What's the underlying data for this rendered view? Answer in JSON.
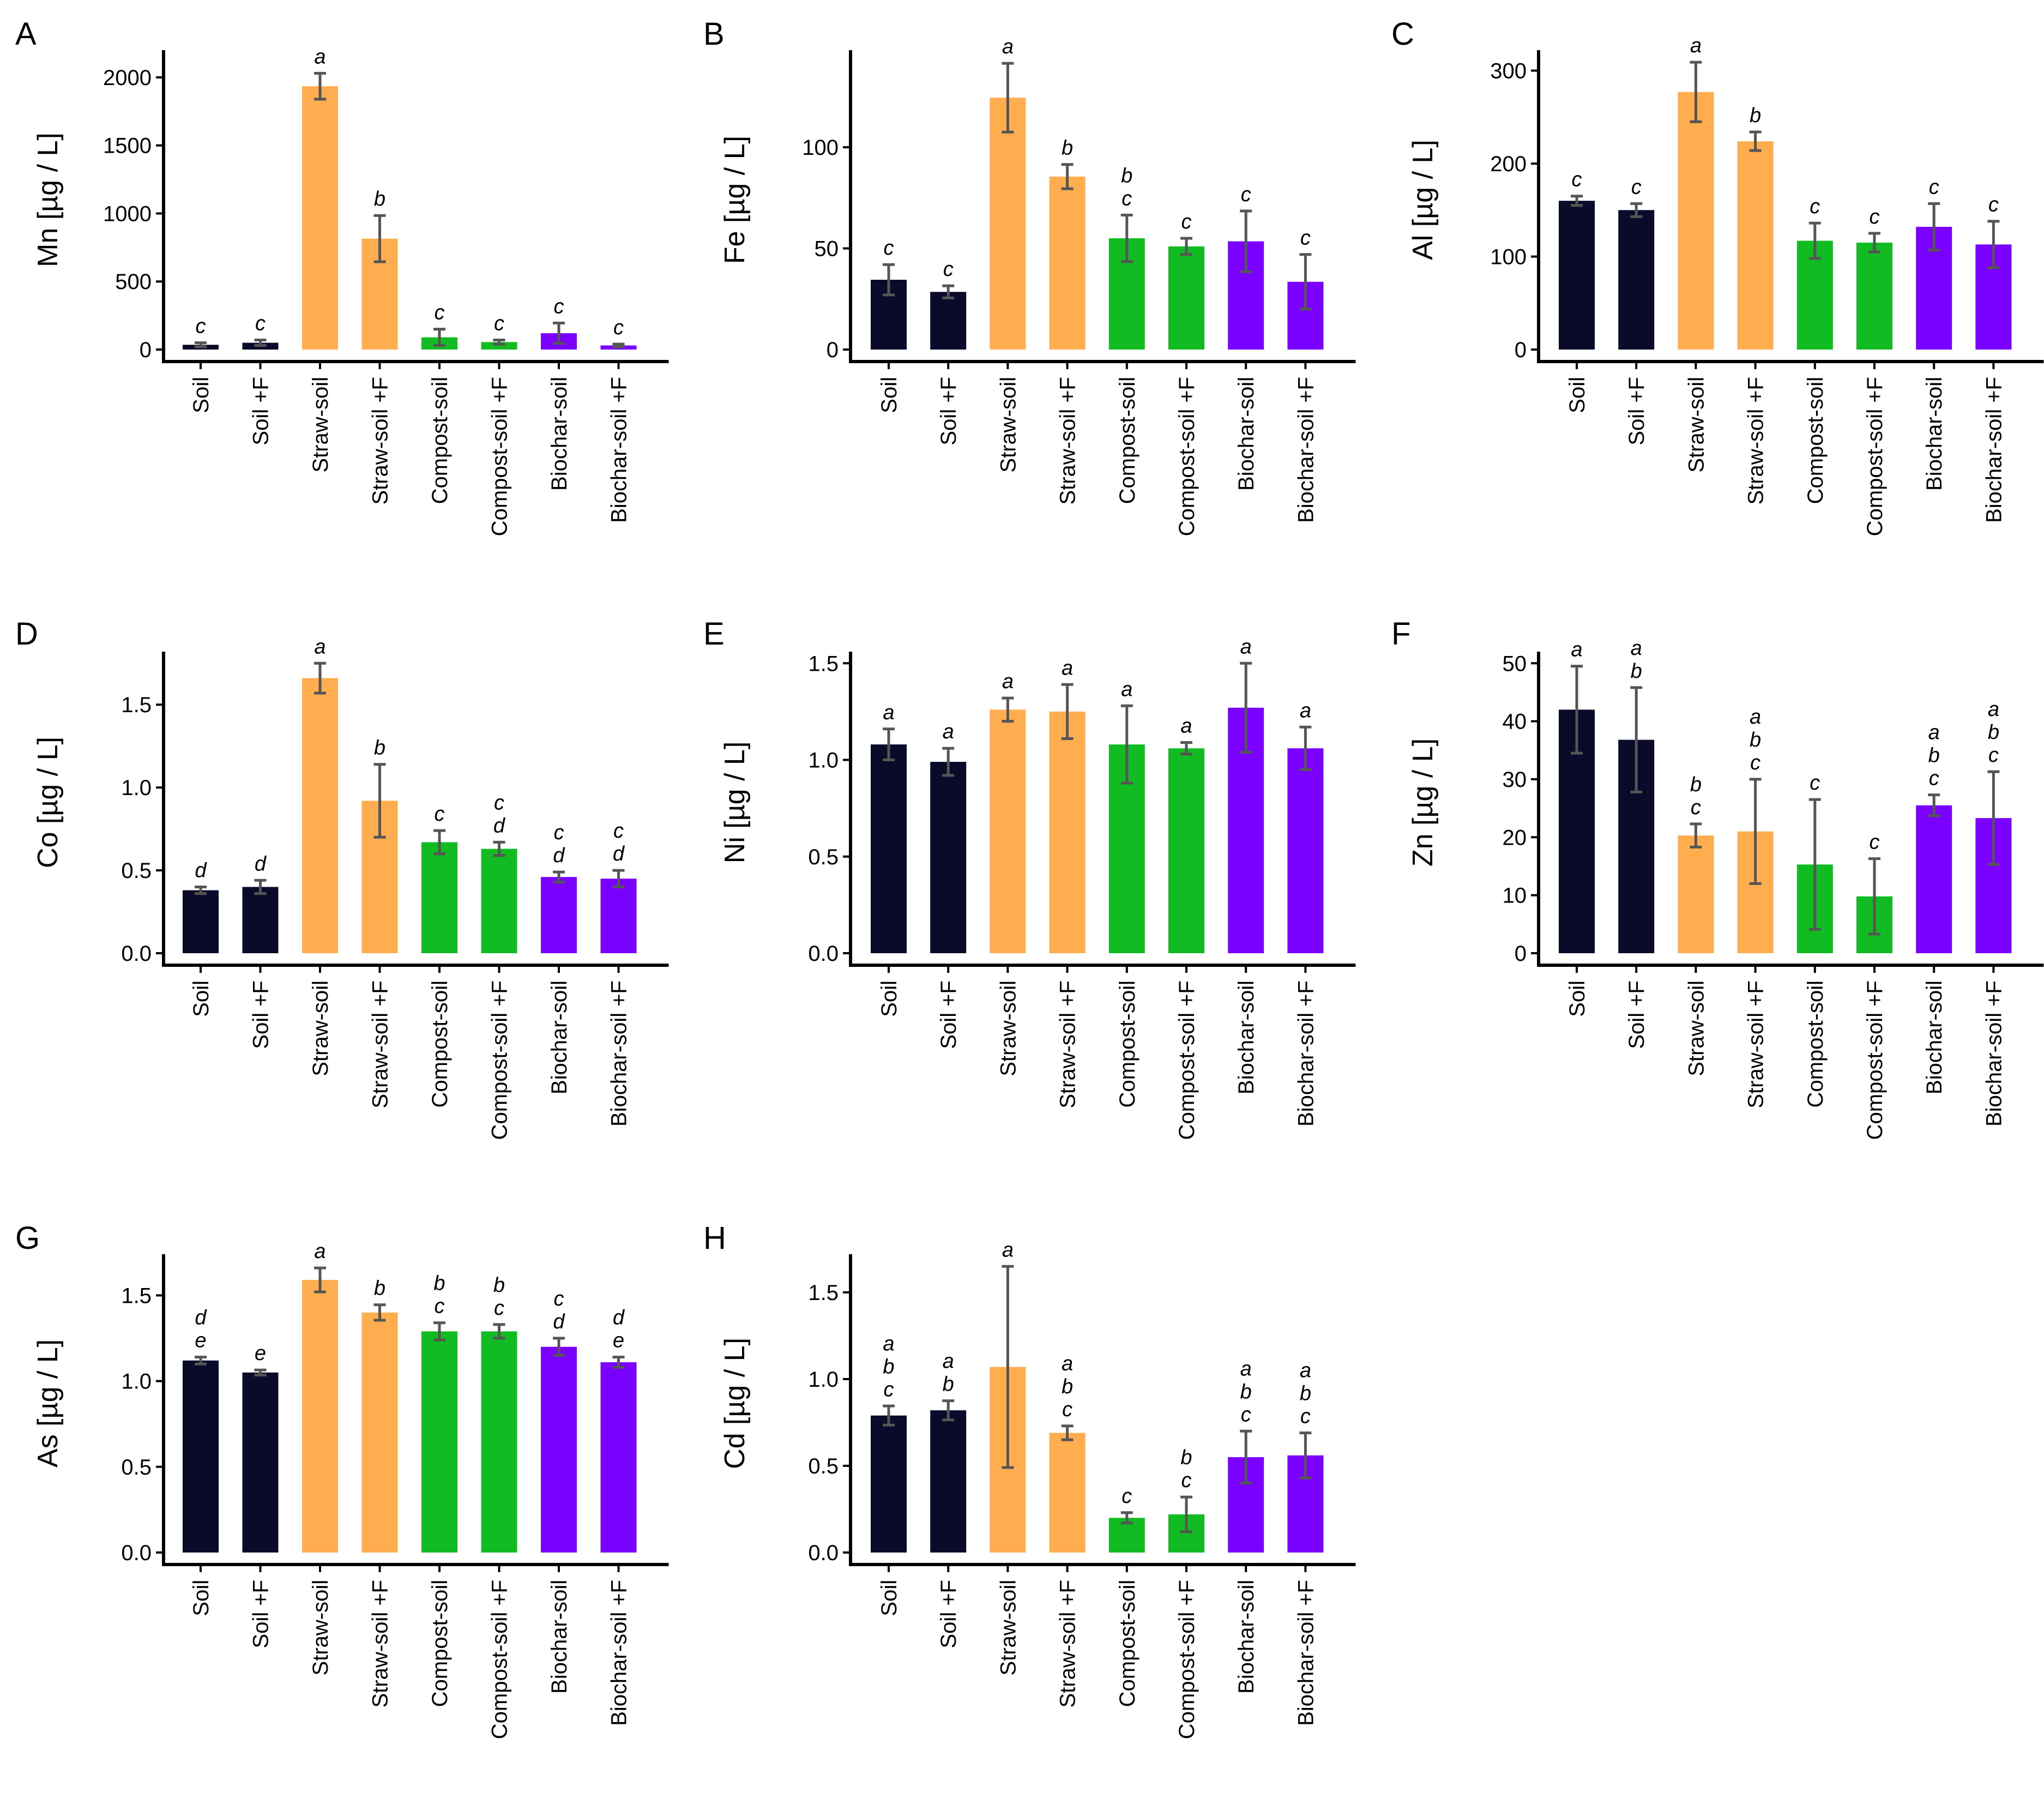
{
  "colors": {
    "soil": "#0a0a2a",
    "straw": "#ffad4f",
    "compost": "#11bb22",
    "biochar": "#7a00ff",
    "error_bar": "#555555",
    "axis": "#000000"
  },
  "treatment_labels": [
    "Soil",
    "Soil +F",
    "Straw-soil",
    "Straw-soil +F",
    "Compost-soil",
    "Compost-soil +F",
    "Biochar-soil",
    "Biochar-soil +F"
  ],
  "color_groups": [
    "soil",
    "soil",
    "straw",
    "straw",
    "compost",
    "compost",
    "biochar",
    "biochar"
  ],
  "chart_data": [
    {
      "panel": "A",
      "type": "bar",
      "ylabel": "Mn [µg / L]",
      "ylim": [
        0,
        2200
      ],
      "yticks": [
        0,
        500,
        1000,
        1500,
        2000
      ],
      "categories": [
        "Soil",
        "Soil +F",
        "Straw-soil",
        "Straw-soil +F",
        "Compost-soil",
        "Compost-soil +F",
        "Biochar-soil",
        "Biochar-soil +F"
      ],
      "values": [
        35,
        50,
        1935,
        815,
        90,
        55,
        120,
        30
      ],
      "errors": [
        15,
        20,
        95,
        170,
        60,
        15,
        75,
        10
      ],
      "letters": [
        "c",
        "c",
        "a",
        "b",
        "c",
        "c",
        "c",
        "c"
      ]
    },
    {
      "panel": "B",
      "type": "bar",
      "ylabel": "Fe [µg / L]",
      "ylim": [
        0,
        148
      ],
      "yticks": [
        0,
        50,
        100
      ],
      "categories": [
        "Soil",
        "Soil +F",
        "Straw-soil",
        "Straw-soil +F",
        "Compost-soil",
        "Compost-soil +F",
        "Biochar-soil",
        "Biochar-soil +F"
      ],
      "values": [
        34.5,
        28.5,
        124.5,
        85.5,
        55,
        51,
        53.5,
        33.5
      ],
      "errors": [
        7.5,
        3,
        17,
        6,
        11.5,
        4,
        15,
        13.5
      ],
      "letters": [
        "c",
        "c",
        "a",
        "b",
        "b\nc",
        "c",
        "c",
        "c"
      ]
    },
    {
      "panel": "C",
      "type": "bar",
      "ylabel": "Al [µg / L]",
      "ylim": [
        0,
        322
      ],
      "yticks": [
        0,
        100,
        200,
        300
      ],
      "categories": [
        "Soil",
        "Soil +F",
        "Straw-soil",
        "Straw-soil +F",
        "Compost-soil",
        "Compost-soil +F",
        "Biochar-soil",
        "Biochar-soil +F"
      ],
      "values": [
        160,
        150,
        277,
        224,
        117,
        115,
        132,
        113
      ],
      "errors": [
        5,
        7,
        32,
        10,
        19,
        10,
        25,
        25
      ],
      "letters": [
        "c",
        "c",
        "a",
        "b",
        "c",
        "c",
        "c",
        "c"
      ]
    },
    {
      "panel": "D",
      "type": "bar",
      "ylabel": "Co [µg / L]",
      "ylim": [
        0,
        1.82
      ],
      "yticks": [
        0.0,
        0.5,
        1.0,
        1.5
      ],
      "categories": [
        "Soil",
        "Soil +F",
        "Straw-soil",
        "Straw-soil +F",
        "Compost-soil",
        "Compost-soil +F",
        "Biochar-soil",
        "Biochar-soil +F"
      ],
      "values": [
        0.38,
        0.4,
        1.66,
        0.92,
        0.67,
        0.63,
        0.46,
        0.45
      ],
      "errors": [
        0.02,
        0.04,
        0.09,
        0.22,
        0.07,
        0.04,
        0.03,
        0.05
      ],
      "letters": [
        "d",
        "d",
        "a",
        "b",
        "c",
        "c\nd",
        "c\nd",
        "c\nd"
      ]
    },
    {
      "panel": "E",
      "type": "bar",
      "ylabel": "Ni [µg / L]",
      "ylim": [
        0,
        1.56
      ],
      "yticks": [
        0.0,
        0.5,
        1.0,
        1.5
      ],
      "categories": [
        "Soil",
        "Soil +F",
        "Straw-soil",
        "Straw-soil +F",
        "Compost-soil",
        "Compost-soil +F",
        "Biochar-soil",
        "Biochar-soil +F"
      ],
      "values": [
        1.08,
        0.99,
        1.26,
        1.25,
        1.08,
        1.06,
        1.27,
        1.06
      ],
      "errors": [
        0.08,
        0.07,
        0.06,
        0.14,
        0.2,
        0.03,
        0.23,
        0.11
      ],
      "letters": [
        "a",
        "a",
        "a",
        "a",
        "a",
        "a",
        "a",
        "a"
      ]
    },
    {
      "panel": "F",
      "type": "bar",
      "ylabel": "Zn [µg / L]",
      "ylim": [
        0,
        52
      ],
      "yticks": [
        0,
        10,
        20,
        30,
        40,
        50
      ],
      "categories": [
        "Soil",
        "Soil +F",
        "Straw-soil",
        "Straw-soil +F",
        "Compost-soil",
        "Compost-soil +F",
        "Biochar-soil",
        "Biochar-soil +F"
      ],
      "values": [
        42,
        36.8,
        20.3,
        21,
        15.3,
        9.8,
        25.5,
        23.3
      ],
      "errors": [
        7.5,
        9,
        2,
        9,
        11.2,
        6.5,
        1.8,
        8
      ],
      "letters": [
        "a",
        "a\nb",
        "b\nc",
        "a\nb\nc",
        "c",
        "c",
        "a\nb\nc",
        "a\nb\nc"
      ]
    },
    {
      "panel": "G",
      "type": "bar",
      "ylabel": "As [µg / L]",
      "ylim": [
        0,
        1.74
      ],
      "yticks": [
        0.0,
        0.5,
        1.0,
        1.5
      ],
      "categories": [
        "Soil",
        "Soil +F",
        "Straw-soil",
        "Straw-soil +F",
        "Compost-soil",
        "Compost-soil +F",
        "Biochar-soil",
        "Biochar-soil +F"
      ],
      "values": [
        1.12,
        1.05,
        1.59,
        1.4,
        1.29,
        1.29,
        1.2,
        1.11
      ],
      "errors": [
        0.02,
        0.015,
        0.07,
        0.045,
        0.05,
        0.04,
        0.05,
        0.03
      ],
      "letters": [
        "d\ne",
        "e",
        "a",
        "b",
        "b\nc",
        "b\nc",
        "c\nd",
        "d\ne"
      ]
    },
    {
      "panel": "H",
      "type": "bar",
      "ylabel": "Cd [µg / L]",
      "ylim": [
        0,
        1.72
      ],
      "yticks": [
        0.0,
        0.5,
        1.0,
        1.5
      ],
      "categories": [
        "Soil",
        "Soil +F",
        "Straw-soil",
        "Straw-soil +F",
        "Compost-soil",
        "Compost-soil +F",
        "Biochar-soil",
        "Biochar-soil +F"
      ],
      "values": [
        0.79,
        0.82,
        1.07,
        0.69,
        0.2,
        0.22,
        0.55,
        0.56
      ],
      "errors": [
        0.055,
        0.055,
        0.58,
        0.04,
        0.03,
        0.1,
        0.15,
        0.13
      ],
      "letters": [
        "a\nb\nc",
        "a\nb",
        "a",
        "a\nb\nc",
        "c",
        "b\nc",
        "a\nb\nc",
        "a\nb\nc"
      ]
    }
  ]
}
